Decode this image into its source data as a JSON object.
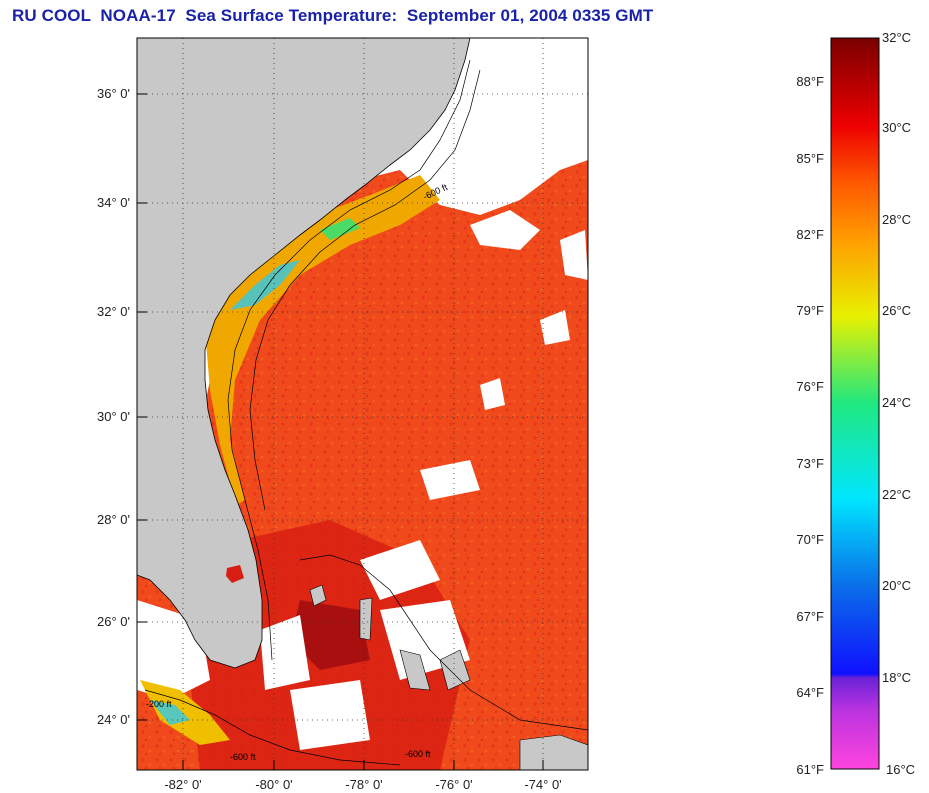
{
  "title": {
    "text": "RU COOL  NOAA-17  Sea Surface Temperature:  September 01, 2004 0335 GMT"
  },
  "map": {
    "latitude_labels": [
      "36° 0'",
      "34° 0'",
      "32° 0'",
      "30° 0'",
      "28° 0'",
      "26° 0'",
      "24° 0'"
    ],
    "longitude_labels": [
      "-82° 0'",
      "-80° 0'",
      "-78° 0'",
      "-76° 0'",
      "-74° 0'"
    ],
    "contour_labels": [
      "-200 ft",
      "-600 ft",
      "-600 ft",
      "-600 ft"
    ],
    "colors": {
      "land": "#c8c8c8",
      "cloud": "#ffffff",
      "warm_water": "#f0461e",
      "hot_water": "#cc1010",
      "coastal_cool": "#f0b000"
    }
  },
  "colorbar": {
    "fahrenheit_labels": [
      "88°F",
      "85°F",
      "82°F",
      "79°F",
      "76°F",
      "73°F",
      "70°F",
      "67°F",
      "64°F",
      "61°F"
    ],
    "celsius_labels": [
      "32°C",
      "30°C",
      "28°C",
      "26°C",
      "24°C",
      "22°C",
      "20°C",
      "18°C",
      "16°C"
    ],
    "range_celsius": [
      16,
      32
    ],
    "stops": [
      "#ff44dd",
      "#8a2ad8",
      "#1010ff",
      "#0a6ee8",
      "#00e6ff",
      "#20e880",
      "#e8f000",
      "#ffa000",
      "#ff5a00",
      "#ee0000",
      "#7a0000"
    ]
  }
}
